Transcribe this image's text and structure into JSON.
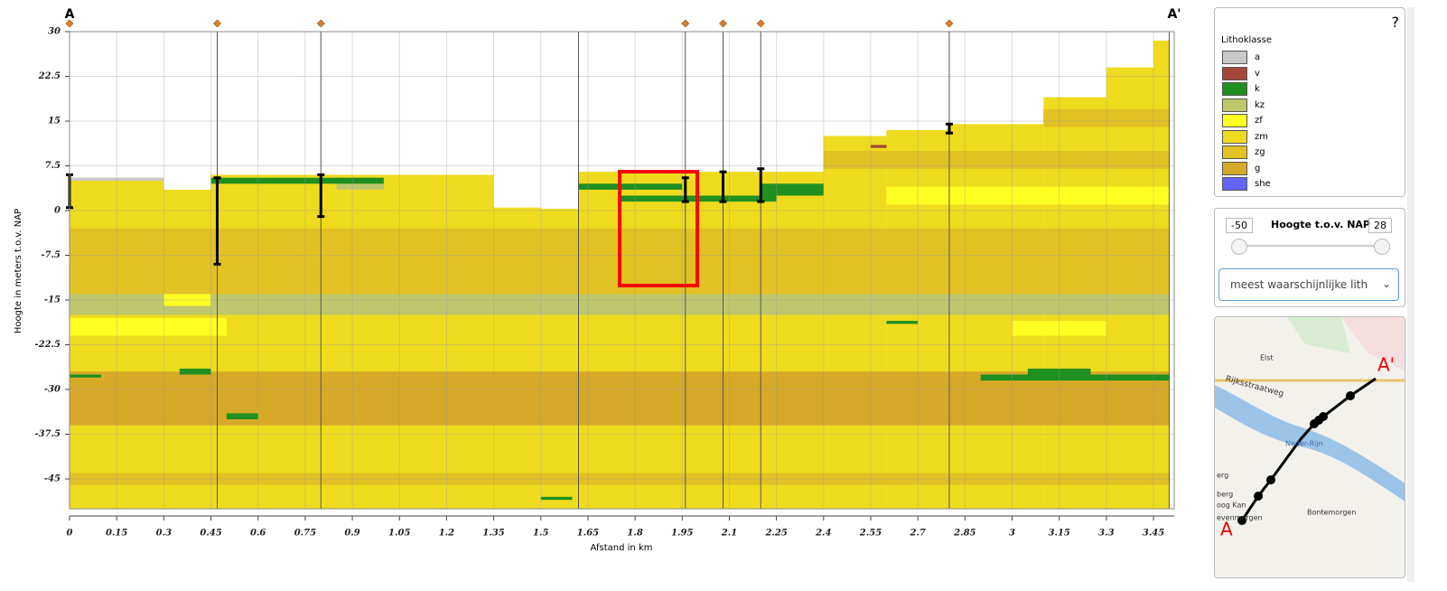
{
  "chart_data": {
    "type": "section",
    "start_label": "A",
    "end_label": "A'",
    "x_label": "Afstand in km",
    "y_label": "Hoogte in meters t.o.v. NAP",
    "xlim": [
      0,
      3.516
    ],
    "ylim": [
      -50,
      30
    ],
    "xticks": [
      0,
      0.15,
      0.3,
      0.45,
      0.6,
      0.75,
      0.9,
      1.05,
      1.2,
      1.35,
      1.5,
      1.65,
      1.8,
      1.95,
      2.1,
      2.25,
      2.4,
      2.55,
      2.7,
      2.85,
      3,
      3.15,
      3.3,
      3.45
    ],
    "yticks": [
      30,
      22.5,
      15,
      7.5,
      0,
      -7.5,
      -15,
      -22.5,
      -30,
      -37.5,
      -45
    ],
    "grid": true,
    "legend_title": "Lithoklasse",
    "classes": [
      {
        "name": "a",
        "color": "#c8c8c8"
      },
      {
        "name": "v",
        "color": "#a5463a"
      },
      {
        "name": "k",
        "color": "#1f8f1f"
      },
      {
        "name": "kz",
        "color": "#bfc76c"
      },
      {
        "name": "zf",
        "color": "#ffff22"
      },
      {
        "name": "zm",
        "color": "#efdb1e"
      },
      {
        "name": "zg",
        "color": "#e2c123"
      },
      {
        "name": "g",
        "color": "#d6a928"
      },
      {
        "name": "she",
        "color": "#6464ff"
      }
    ],
    "cells": [
      {
        "class": "zm",
        "x": [
          0,
          0.3
        ],
        "y": [
          -50,
          5.5
        ]
      },
      {
        "class": "zm",
        "x": [
          0.3,
          0.45
        ],
        "y": [
          -50,
          3.5
        ]
      },
      {
        "class": "zm",
        "x": [
          0.45,
          1.35
        ],
        "y": [
          -50,
          6
        ]
      },
      {
        "class": "zm",
        "x": [
          1.35,
          1.5
        ],
        "y": [
          -50,
          0.5
        ]
      },
      {
        "class": "zm",
        "x": [
          1.5,
          1.62
        ],
        "y": [
          -50,
          0.3
        ]
      },
      {
        "class": "zm",
        "x": [
          1.62,
          2.4
        ],
        "y": [
          -50,
          6.5
        ]
      },
      {
        "class": "zm",
        "x": [
          2.4,
          2.6
        ],
        "y": [
          -50,
          12.5
        ]
      },
      {
        "class": "zm",
        "x": [
          2.6,
          2.8
        ],
        "y": [
          -50,
          13.5
        ]
      },
      {
        "class": "zm",
        "x": [
          2.8,
          3.1
        ],
        "y": [
          -50,
          14.5
        ]
      },
      {
        "class": "zm",
        "x": [
          3.1,
          3.3
        ],
        "y": [
          -50,
          19
        ]
      },
      {
        "class": "zm",
        "x": [
          3.3,
          3.45
        ],
        "y": [
          -50,
          24
        ]
      },
      {
        "class": "zm",
        "x": [
          3.45,
          3.5
        ],
        "y": [
          -50,
          28.5
        ]
      },
      {
        "class": "zg",
        "x": [
          0,
          3.5
        ],
        "y": [
          -14,
          -3
        ]
      },
      {
        "class": "kz",
        "x": [
          0,
          3.5
        ],
        "y": [
          -17.5,
          -14
        ]
      },
      {
        "class": "zf",
        "x": [
          0,
          0.5
        ],
        "y": [
          -21,
          -18
        ]
      },
      {
        "class": "zf",
        "x": [
          3.0,
          3.3
        ],
        "y": [
          -21,
          -18.5
        ]
      },
      {
        "class": "g",
        "x": [
          0,
          3.5
        ],
        "y": [
          -36,
          -27
        ]
      },
      {
        "class": "zg",
        "x": [
          0,
          3.5
        ],
        "y": [
          -46,
          -44
        ]
      },
      {
        "class": "zg",
        "x": [
          2.4,
          3.5
        ],
        "y": [
          7,
          10
        ]
      },
      {
        "class": "zg",
        "x": [
          3.1,
          3.5
        ],
        "y": [
          14,
          17
        ]
      },
      {
        "class": "zf",
        "x": [
          2.6,
          3.5
        ],
        "y": [
          1,
          4
        ]
      },
      {
        "class": "zf",
        "x": [
          0.3,
          0.45
        ],
        "y": [
          -16,
          -14
        ]
      },
      {
        "class": "kz",
        "x": [
          0.85,
          1.0
        ],
        "y": [
          3.5,
          5.5
        ]
      },
      {
        "class": "a",
        "x": [
          0,
          0.3
        ],
        "y": [
          5,
          5.5
        ]
      },
      {
        "class": "k",
        "x": [
          0.45,
          1.0
        ],
        "y": [
          4.5,
          5.5
        ]
      },
      {
        "class": "k",
        "x": [
          1.62,
          1.95
        ],
        "y": [
          3.5,
          4.5
        ]
      },
      {
        "class": "k",
        "x": [
          1.75,
          2.25
        ],
        "y": [
          1.5,
          2.5
        ]
      },
      {
        "class": "k",
        "x": [
          2.2,
          2.4
        ],
        "y": [
          2.5,
          4.5
        ]
      },
      {
        "class": "k",
        "x": [
          2.9,
          3.5
        ],
        "y": [
          -28.5,
          -27.5
        ]
      },
      {
        "class": "k",
        "x": [
          3.05,
          3.25
        ],
        "y": [
          -27.5,
          -26.5
        ]
      },
      {
        "class": "k",
        "x": [
          0.35,
          0.45
        ],
        "y": [
          -27.5,
          -26.5
        ]
      },
      {
        "class": "k",
        "x": [
          0,
          0.1
        ],
        "y": [
          -28,
          -27.5
        ]
      },
      {
        "class": "k",
        "x": [
          1.5,
          1.6
        ],
        "y": [
          -48.5,
          -48
        ]
      },
      {
        "class": "k",
        "x": [
          2.6,
          2.7
        ],
        "y": [
          -19,
          -18.5
        ]
      },
      {
        "class": "k",
        "x": [
          0.5,
          0.6
        ],
        "y": [
          -35,
          -34
        ]
      },
      {
        "class": "v",
        "x": [
          2.55,
          2.6
        ],
        "y": [
          10.5,
          11
        ]
      }
    ],
    "boreholes": [
      {
        "x": 0,
        "top": 6,
        "bottom": 0.5
      },
      {
        "x": 0.47,
        "top": 5.5,
        "bottom": -9
      },
      {
        "x": 0.8,
        "top": 6,
        "bottom": -1
      },
      {
        "x": 1.96,
        "top": 5.5,
        "bottom": 1.5
      },
      {
        "x": 2.08,
        "top": 6.5,
        "bottom": 1.5
      },
      {
        "x": 2.2,
        "top": 7,
        "bottom": 1.5
      },
      {
        "x": 2.8,
        "top": 14.5,
        "bottom": 13
      }
    ],
    "vertical_lines": [
      1.62,
      3.5
    ]
  },
  "help": "?",
  "height_filter": {
    "min": "-50",
    "label": "Hoogte t.o.v. NAP",
    "max": "28",
    "select": "meest waarschijnlijke lith"
  },
  "map": {
    "labels": [
      "Elst",
      "Rijksstraatweg",
      "Neder-Rijn",
      "erg",
      "berg",
      "oog Kan",
      "evenmorgen",
      "Bontemorgen",
      "A'",
      "A"
    ]
  }
}
